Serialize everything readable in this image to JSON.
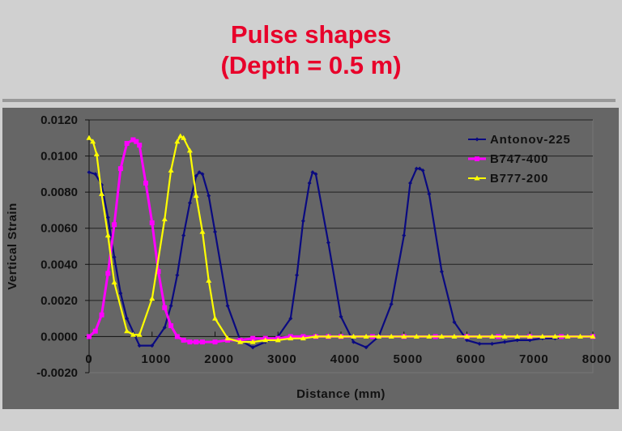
{
  "slide": {
    "title_line1": "Pulse shapes",
    "title_line2": "(Depth = 0.5 m)"
  },
  "colors": {
    "title": "#e8002a",
    "background": "#d0d0d0",
    "plot_background": "#666666",
    "antonov": "#0a0a80",
    "b747": "#ff00ff",
    "b777": "#ffff00"
  },
  "chart_data": {
    "type": "line",
    "title": "Pulse shapes (Depth = 0.5 m)",
    "xlabel": "Distance (mm)",
    "ylabel": "Vertical Strain",
    "xlim": [
      0,
      8000
    ],
    "ylim": [
      -0.002,
      0.012
    ],
    "x_ticks": [
      "0",
      "1000",
      "2000",
      "3000",
      "4000",
      "5000",
      "6000",
      "7000",
      "8000"
    ],
    "y_ticks": [
      "0.0120",
      "0.0100",
      "0.0080",
      "0.0060",
      "0.0040",
      "0.0020",
      "0.0000",
      "-0.0020"
    ],
    "grid": "horizontal major gridlines",
    "legend_position": "top-right inside plot",
    "series": [
      {
        "name": "Antonov-225",
        "color": "#0a0a80",
        "marker": "diamond",
        "x": [
          0,
          100,
          200,
          300,
          400,
          500,
          600,
          800,
          1000,
          1200,
          1300,
          1400,
          1500,
          1600,
          1700,
          1750,
          1800,
          1900,
          2000,
          2200,
          2400,
          2600,
          2800,
          3000,
          3200,
          3300,
          3400,
          3500,
          3550,
          3600,
          3800,
          4000,
          4200,
          4400,
          4600,
          4800,
          5000,
          5100,
          5200,
          5250,
          5300,
          5400,
          5600,
          5800,
          6000,
          6200,
          6400,
          6600,
          6800,
          7000,
          7200,
          7400,
          7600,
          7800,
          8000
        ],
        "y": [
          0.0091,
          0.009,
          0.0084,
          0.0066,
          0.0044,
          0.0024,
          0.001,
          -0.0005,
          -0.0005,
          0.0005,
          0.0017,
          0.0034,
          0.0056,
          0.0074,
          0.0089,
          0.0091,
          0.009,
          0.0078,
          0.0058,
          0.0017,
          -0.0002,
          -0.0006,
          -0.0003,
          0.0,
          0.001,
          0.0034,
          0.0064,
          0.0085,
          0.0091,
          0.009,
          0.0052,
          0.0011,
          -0.0003,
          -0.0006,
          0.0,
          0.0018,
          0.0056,
          0.0085,
          0.0093,
          0.0093,
          0.0092,
          0.0079,
          0.0036,
          0.0008,
          -0.0002,
          -0.0004,
          -0.0004,
          -0.0003,
          -0.0002,
          -0.0002,
          -0.0001,
          -0.0001,
          0.0,
          0.0,
          0.0
        ]
      },
      {
        "name": "B747-400",
        "color": "#ff00ff",
        "marker": "square",
        "x": [
          0,
          100,
          200,
          300,
          400,
          500,
          600,
          700,
          750,
          800,
          900,
          1000,
          1100,
          1200,
          1300,
          1400,
          1500,
          1600,
          1700,
          1800,
          2000,
          2200,
          2400,
          2600,
          2800,
          3000,
          3200,
          3400,
          3600,
          3800,
          4000,
          4500,
          5000,
          5500,
          6000,
          6500,
          7000,
          7500,
          8000
        ],
        "y": [
          0.0,
          0.0003,
          0.0012,
          0.0035,
          0.0062,
          0.0093,
          0.0107,
          0.0109,
          0.0108,
          0.0106,
          0.0085,
          0.0063,
          0.0036,
          0.0016,
          0.0006,
          0.0,
          -0.0002,
          -0.0003,
          -0.0003,
          -0.0003,
          -0.0003,
          -0.0002,
          -0.0002,
          -0.0001,
          -0.0001,
          -0.0001,
          0.0,
          0.0,
          0.0,
          0.0,
          0.0,
          0.0,
          0.0,
          0.0,
          0.0,
          0.0,
          0.0,
          0.0,
          0.0
        ]
      },
      {
        "name": "B777-200",
        "color": "#ffff00",
        "marker": "triangle",
        "x": [
          0,
          60,
          120,
          200,
          300,
          400,
          600,
          700,
          800,
          1000,
          1200,
          1300,
          1400,
          1450,
          1500,
          1600,
          1700,
          1800,
          1900,
          2000,
          2200,
          2400,
          2600,
          2800,
          3000,
          3200,
          3400,
          3600,
          3800,
          4000,
          4200,
          4400,
          4600,
          4800,
          5000,
          5200,
          5400,
          5600,
          5800,
          6000,
          6200,
          6400,
          6600,
          6800,
          7000,
          7200,
          7400,
          7600,
          7800,
          8000
        ],
        "y": [
          0.011,
          0.0108,
          0.0101,
          0.0079,
          0.0056,
          0.003,
          0.0003,
          0.0001,
          0.0001,
          0.0021,
          0.0065,
          0.0092,
          0.0108,
          0.0111,
          0.011,
          0.0103,
          0.0078,
          0.0058,
          0.0031,
          0.001,
          -0.0001,
          -0.0003,
          -0.0003,
          -0.0002,
          -0.0002,
          -0.0001,
          -0.0001,
          0.0,
          0.0,
          0.0,
          0.0,
          0.0,
          0.0,
          0.0,
          0.0,
          0.0,
          0.0,
          0.0,
          0.0,
          0.0,
          0.0,
          0.0,
          0.0,
          0.0,
          0.0,
          0.0,
          0.0,
          0.0,
          0.0,
          0.0
        ]
      }
    ]
  }
}
